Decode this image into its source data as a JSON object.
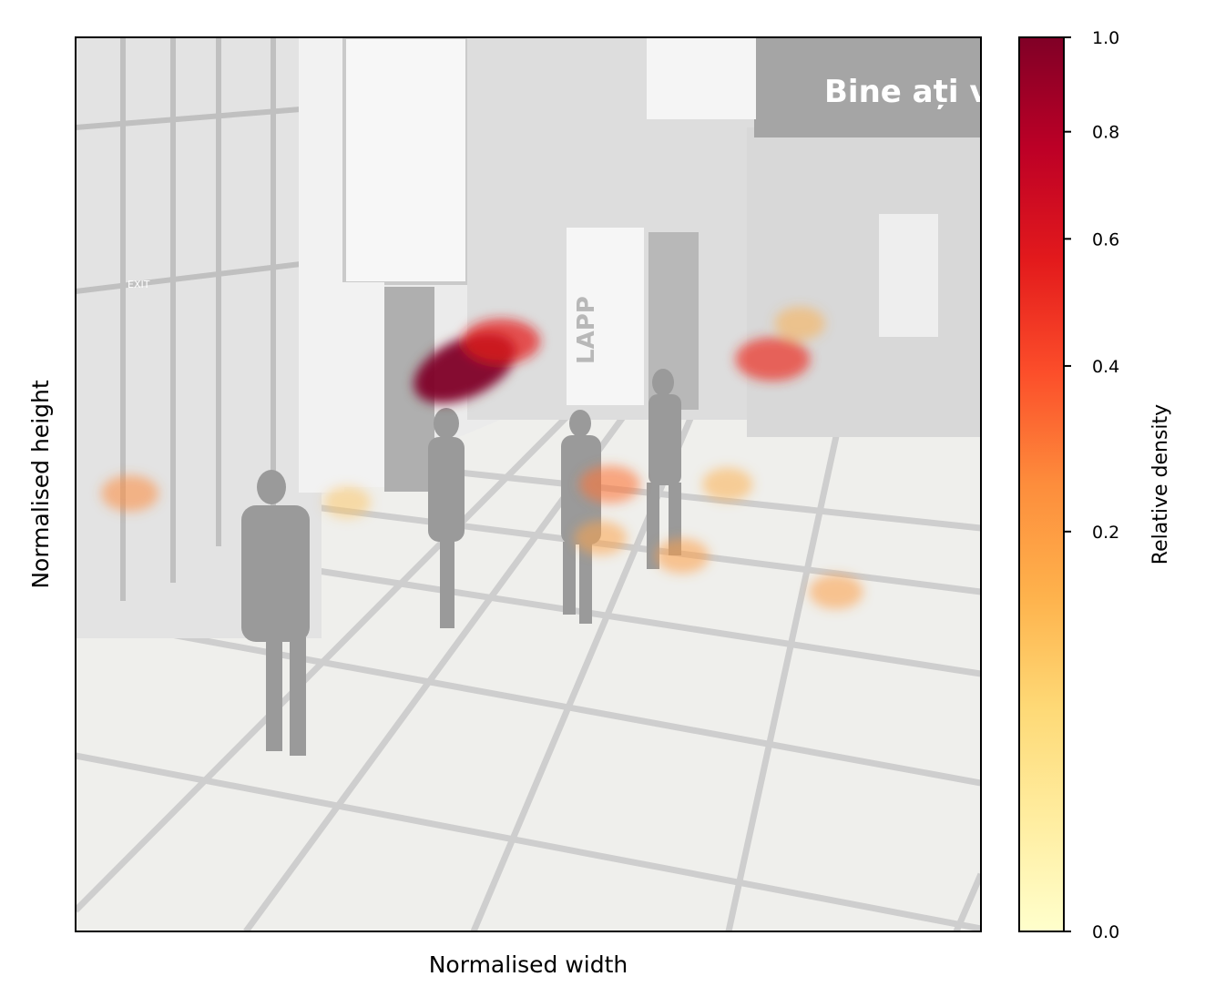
{
  "chart_data": {
    "type": "heatmap",
    "title": "",
    "xlabel": "Normalised width",
    "ylabel": "Normalised height",
    "colorbar": {
      "label": "Relative density",
      "range": [
        0.0,
        1.0
      ],
      "scale": "power",
      "colormap": "YlOrRd",
      "colors": [
        "#ffffcc",
        "#ffeda0",
        "#fed976",
        "#feb24c",
        "#fd8d3c",
        "#fc4e2a",
        "#e31a1c",
        "#bd0026",
        "#800026"
      ],
      "ticks": [
        {
          "value": 0.0,
          "label": "0.0"
        },
        {
          "value": 0.2,
          "label": "0.2"
        },
        {
          "value": 0.4,
          "label": "0.4"
        },
        {
          "value": 0.6,
          "label": "0.6"
        },
        {
          "value": 0.8,
          "label": "0.8"
        },
        {
          "value": 1.0,
          "label": "1.0"
        }
      ]
    },
    "axes": {
      "xlim": [
        0,
        1
      ],
      "ylim": [
        0,
        1
      ],
      "xticks": false,
      "yticks": false,
      "grid": false
    },
    "background": "grayscale surveillance photo of a building lobby",
    "background_text": [
      "Bine ați veni",
      "LAPP",
      "EXIT"
    ],
    "hotspots": [
      {
        "x": 0.43,
        "y": 0.63,
        "density": 1.0
      },
      {
        "x": 0.47,
        "y": 0.66,
        "density": 0.55
      },
      {
        "x": 0.77,
        "y": 0.64,
        "density": 0.5
      },
      {
        "x": 0.59,
        "y": 0.5,
        "density": 0.3
      },
      {
        "x": 0.06,
        "y": 0.49,
        "density": 0.25
      },
      {
        "x": 0.67,
        "y": 0.42,
        "density": 0.2
      },
      {
        "x": 0.84,
        "y": 0.38,
        "density": 0.2
      },
      {
        "x": 0.58,
        "y": 0.44,
        "density": 0.18
      },
      {
        "x": 0.72,
        "y": 0.5,
        "density": 0.15
      },
      {
        "x": 0.8,
        "y": 0.68,
        "density": 0.15
      },
      {
        "x": 0.3,
        "y": 0.48,
        "density": 0.1
      }
    ]
  }
}
